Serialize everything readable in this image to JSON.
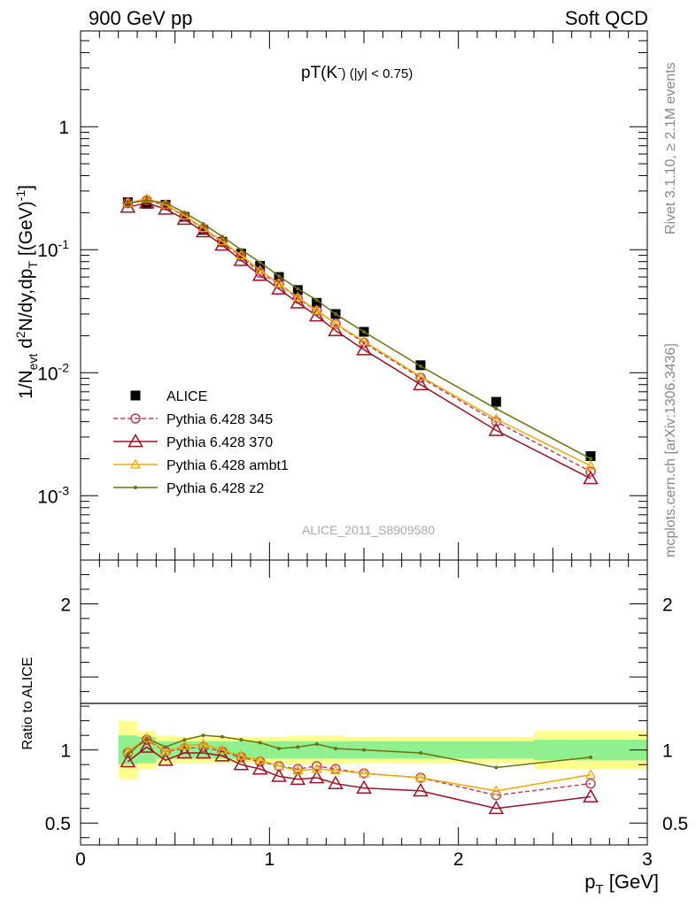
{
  "header": {
    "left": "900 GeV pp",
    "right": "Soft QCD"
  },
  "side_text": {
    "top": "Rivet 3.1.10, ≥ 2.1M events",
    "bottom": "mcplots.cern.ch [arXiv:1306.3436]"
  },
  "colors": {
    "data": "#000000",
    "p345": "#c0405a",
    "p370": "#a01020",
    "ambt1": "#f0a800",
    "z2": "#707010",
    "band_inner": "#90f090",
    "band_outer": "#ffff90"
  },
  "chart_data": [
    {
      "type": "line",
      "panel": "main",
      "title": "pT(K⁻) (|y| < 0.75)",
      "title_main": "pT(K",
      "title_sup": "-",
      "title_rest": ") (|y| < 0.75)",
      "ylabel": "1/N_evt d²N/dy,dp_T [(GeV)⁻¹]",
      "ylabel_parts": {
        "a": "1/N",
        "b": "evt",
        "c": " d",
        "d": "2",
        "e": "N/dy,dp",
        "f": "T",
        "g": " [(GeV)",
        "h": "-1",
        "i": "]"
      },
      "yscale": "log",
      "xlim": [
        0,
        3
      ],
      "ylim": [
        0.0003,
        6
      ],
      "ytick_labels": [
        {
          "v": 0.001,
          "base": "10",
          "exp": "-3"
        },
        {
          "v": 0.01,
          "base": "10",
          "exp": "-2"
        },
        {
          "v": 0.1,
          "base": "10",
          "exp": "-1"
        },
        {
          "v": 1,
          "base": "1",
          "exp": ""
        }
      ],
      "watermark": "ALICE_2011_S8909580",
      "legend_position": "lower-left",
      "x": [
        0.25,
        0.35,
        0.45,
        0.55,
        0.65,
        0.75,
        0.85,
        0.95,
        1.05,
        1.15,
        1.25,
        1.35,
        1.5,
        1.8,
        2.2,
        2.7
      ],
      "series": [
        {
          "name": "ALICE",
          "key": "data",
          "marker": "square",
          "values": [
            0.243,
            0.236,
            0.232,
            0.185,
            0.145,
            0.116,
            0.093,
            0.074,
            0.06,
            0.047,
            0.037,
            0.03,
            0.0215,
            0.0115,
            0.0058,
            0.0021
          ]
        },
        {
          "name": "Pythia 6.428 345",
          "key": "p345",
          "marker": "circle",
          "dash": true,
          "values": [
            0.239,
            0.252,
            0.23,
            0.187,
            0.148,
            0.115,
            0.088,
            0.065,
            0.053,
            0.04,
            0.032,
            0.025,
            0.0175,
            0.0091,
            0.004,
            0.00157
          ]
        },
        {
          "name": "Pythia 6.428 370",
          "key": "p370",
          "marker": "triangle",
          "values": [
            0.222,
            0.24,
            0.214,
            0.177,
            0.14,
            0.109,
            0.082,
            0.062,
            0.048,
            0.037,
            0.029,
            0.022,
            0.0154,
            0.008,
            0.0034,
            0.00138
          ]
        },
        {
          "name": "Pythia 6.428 ambt1",
          "key": "ambt1",
          "marker": "triangle-small",
          "values": [
            0.24,
            0.26,
            0.232,
            0.19,
            0.15,
            0.117,
            0.09,
            0.068,
            0.053,
            0.041,
            0.032,
            0.025,
            0.018,
            0.0093,
            0.0042,
            0.00175
          ]
        },
        {
          "name": "Pythia 6.428 z2",
          "key": "z2",
          "marker": "dot",
          "values": [
            0.238,
            0.252,
            0.24,
            0.2,
            0.162,
            0.128,
            0.1,
            0.079,
            0.061,
            0.048,
            0.039,
            0.03,
            0.0215,
            0.0113,
            0.0051,
            0.002
          ]
        }
      ]
    },
    {
      "type": "line",
      "panel": "ratio",
      "xlabel": "p_T [GeV]",
      "xlabel_parts": {
        "a": "p",
        "b": "T",
        "c": " [GeV]"
      },
      "ylabel": "Ratio to ALICE",
      "xlim": [
        0,
        3
      ],
      "ylim": [
        0.35,
        2.3
      ],
      "xtick_labels": [
        {
          "v": 0,
          "t": "0"
        },
        {
          "v": 1,
          "t": "1"
        },
        {
          "v": 2,
          "t": "2"
        },
        {
          "v": 3,
          "t": "3"
        }
      ],
      "ytick_labels": [
        {
          "v": 0.5,
          "t": "0.5"
        },
        {
          "v": 1,
          "t": "1"
        },
        {
          "v": 2,
          "t": "2"
        }
      ],
      "bands": {
        "edges": [
          0.2,
          0.3,
          0.4,
          0.5,
          0.6,
          0.7,
          0.8,
          0.9,
          1.0,
          1.1,
          1.2,
          1.3,
          1.4,
          1.6,
          2.0,
          2.4,
          3.0
        ],
        "inner": [
          0.1,
          0.09,
          0.06,
          0.06,
          0.06,
          0.06,
          0.06,
          0.06,
          0.06,
          0.06,
          0.06,
          0.06,
          0.06,
          0.06,
          0.06,
          0.07
        ],
        "outer": [
          0.2,
          0.13,
          0.1,
          0.09,
          0.09,
          0.09,
          0.09,
          0.09,
          0.09,
          0.1,
          0.1,
          0.1,
          0.09,
          0.09,
          0.09,
          0.13
        ]
      },
      "x": [
        0.25,
        0.35,
        0.45,
        0.55,
        0.65,
        0.75,
        0.85,
        0.95,
        1.05,
        1.15,
        1.25,
        1.35,
        1.5,
        1.8,
        2.2,
        2.7
      ],
      "series": [
        {
          "name": "Pythia 6.428 345",
          "key": "p345",
          "marker": "circle",
          "dash": true,
          "values": [
            0.98,
            1.07,
            0.99,
            1.01,
            1.02,
            0.99,
            0.95,
            0.92,
            0.89,
            0.87,
            0.89,
            0.87,
            0.84,
            0.81,
            0.69,
            0.77
          ]
        },
        {
          "name": "Pythia 6.428 370",
          "key": "p370",
          "marker": "triangle",
          "values": [
            0.92,
            1.02,
            0.93,
            0.98,
            0.98,
            0.96,
            0.9,
            0.87,
            0.82,
            0.8,
            0.81,
            0.77,
            0.74,
            0.72,
            0.6,
            0.68
          ]
        },
        {
          "name": "Pythia 6.428 ambt1",
          "key": "ambt1",
          "marker": "triangle-small",
          "values": [
            0.99,
            1.08,
            0.99,
            1.03,
            1.04,
            1.0,
            0.96,
            0.93,
            0.89,
            0.86,
            0.87,
            0.86,
            0.84,
            0.81,
            0.72,
            0.83
          ]
        },
        {
          "name": "Pythia 6.428 z2",
          "key": "z2",
          "marker": "dot",
          "values": [
            0.97,
            1.08,
            1.02,
            1.07,
            1.1,
            1.09,
            1.07,
            1.05,
            1.01,
            1.02,
            1.04,
            1.01,
            1.0,
            0.98,
            0.88,
            0.95
          ]
        }
      ]
    }
  ]
}
